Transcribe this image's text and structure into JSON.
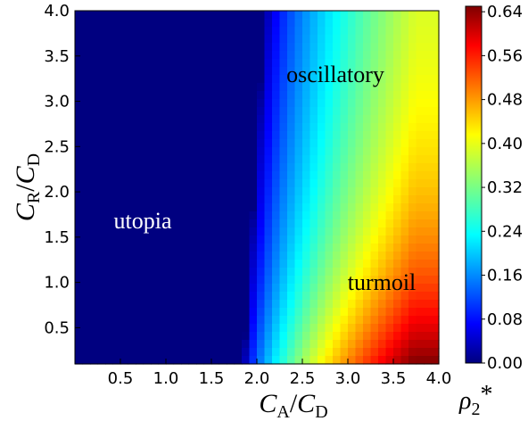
{
  "chart_data": {
    "type": "heatmap",
    "xlabel": {
      "main": "C",
      "sub_num": "A",
      "sep": "/",
      "main2": "C",
      "sub_den": "D"
    },
    "ylabel": {
      "main": "C",
      "sub_num": "R",
      "sep": "/",
      "main2": "C",
      "sub_den": "D"
    },
    "xlim": [
      0.0,
      4.0
    ],
    "ylim": [
      0.1,
      4.0
    ],
    "x_ticks": [
      "0.5",
      "1.0",
      "1.5",
      "2.0",
      "2.5",
      "3.0",
      "3.5",
      "4.0"
    ],
    "y_ticks": [
      "0.5",
      "1.0",
      "1.5",
      "2.0",
      "2.5",
      "3.0",
      "3.5",
      "4.0"
    ],
    "colorbar": {
      "label": {
        "main": "ρ",
        "sub": "2",
        "sup": "*"
      },
      "range": [
        0.0,
        0.65
      ],
      "ticks": [
        "0.00",
        "0.08",
        "0.16",
        "0.24",
        "0.32",
        "0.40",
        "0.48",
        "0.56",
        "0.64"
      ],
      "colormap": "jet"
    },
    "annotations": [
      {
        "text": "utopia",
        "x": 0.75,
        "y": 1.7,
        "color": "#ffffff"
      },
      {
        "text": "oscillatory",
        "x": 3.05,
        "y": 3.3,
        "color": "#000000"
      },
      {
        "text": "turmoil",
        "x": 3.35,
        "y": 1.0,
        "color": "#000000"
      }
    ],
    "field": {
      "description_of_shape": "rho2* is 0 for C_A/C_D below ~1.85 (utopia), rising toward ~0.65 at large C_A and small C_R",
      "boundary_ca": 1.85,
      "max_value": 0.65
    }
  }
}
